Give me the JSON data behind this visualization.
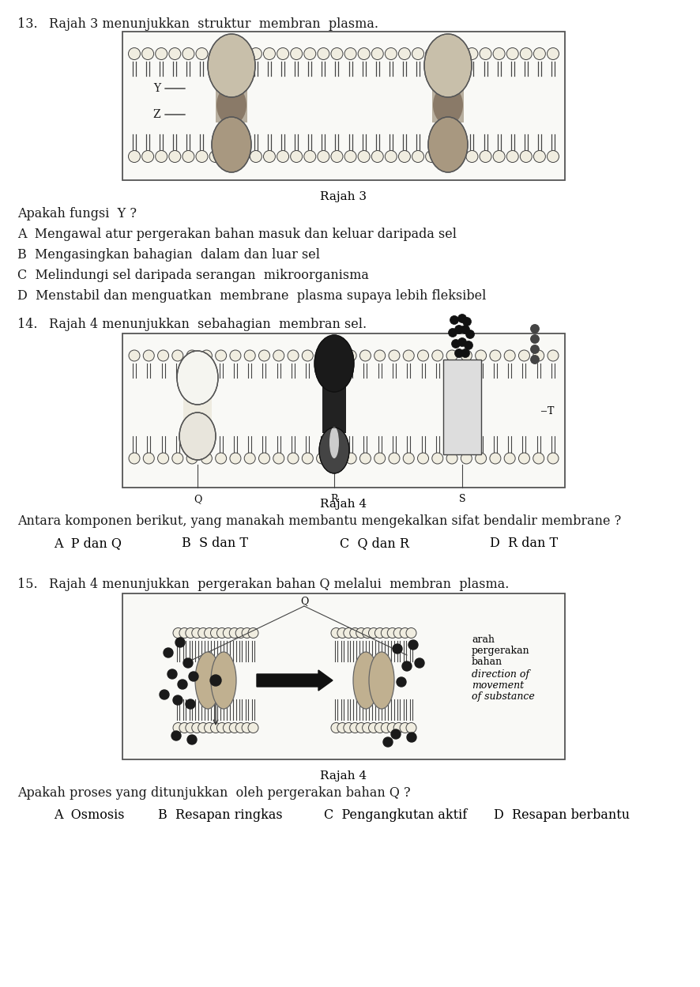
{
  "bg_color": "#ffffff",
  "fig_width": 8.86,
  "fig_height": 12.49,
  "q13_number": "13.",
  "q13_text": "Rajah 3 menunjukkan  struktur  membran  plasma.",
  "q13_fig_caption": "Rajah 3",
  "q13_question": "Apakah fungsi  Y ?",
  "q13_A": "A  Mengawal atur pergerakan bahan masuk dan keluar daripada sel",
  "q13_B": "B  Mengasingkan bahagian  dalam dan luar sel",
  "q13_C": "C  Melindungi sel daripada serangan  mikroorganisma",
  "q13_D": "D  Menstabil dan menguatkan  membrane  plasma supaya lebih fleksibel",
  "q14_number": "14.",
  "q14_text": "Rajah 4 menunjukkan  sebahagian  membran sel.",
  "q14_fig_caption": "Rajah 4",
  "q14_question": "Antara komponen berikut, yang manakah membantu mengekalkan sifat bendalir membrane ?",
  "q14_A": "A  P dan Q",
  "q14_B": "B  S dan T",
  "q14_C": "C  Q dan R",
  "q14_D": "D  R dan T",
  "q15_number": "15.",
  "q15_text": "Rajah 4 menunjukkan  pergerakan bahan Q melalui  membran  plasma.",
  "q15_fig_caption": "Rajah 4",
  "q15_question": "Apakah proses yang ditunjukkan  oleh pergerakan bahan Q ?",
  "q15_A": "A  Osmosis",
  "q15_B": "B  Resapan ringkas",
  "q15_C": "C  Pengangkutan aktif",
  "q15_D": "D  Resapan berbantu",
  "direction_text1": "arah",
  "direction_text2": "pergerakan",
  "direction_text3": "bahan",
  "direction_text4": "direction of",
  "direction_text5": "movement",
  "direction_text6": "of substance"
}
